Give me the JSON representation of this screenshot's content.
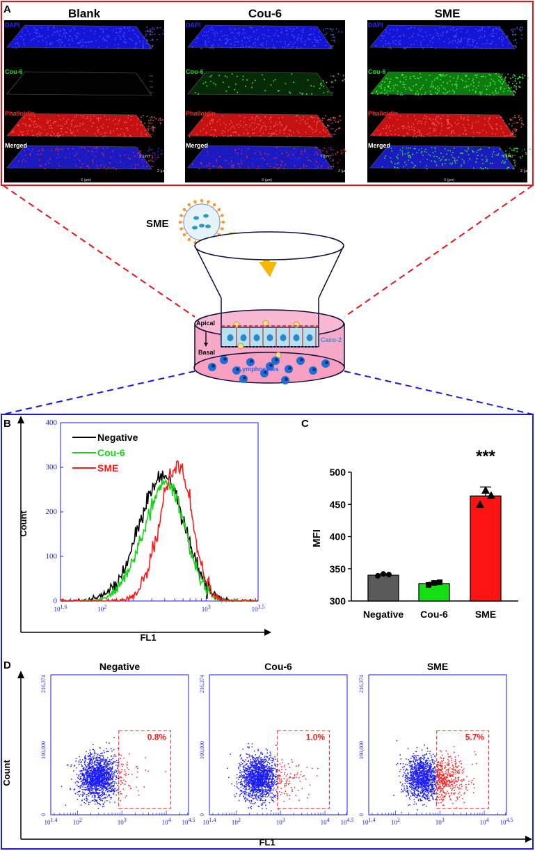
{
  "colors": {
    "red_frame": "#e8121b",
    "blue_frame": "#1a1ad9",
    "black": "#000000",
    "blue_tick": "#1a1aff",
    "green": "#14d414",
    "red": "#ff1a1a",
    "gray": "#5a5a5a"
  },
  "panel_a": {
    "letter": "A",
    "columns": [
      {
        "title": "Blank",
        "channels": [
          "DAPI",
          "Cou-6",
          "Phalloidin",
          "Merged"
        ],
        "green_level": 0.0
      },
      {
        "title": "Cou-6",
        "channels": [
          "DAPI",
          "Cou-6",
          "Phalloidin",
          "Merged"
        ],
        "green_level": 0.25
      },
      {
        "title": "SME",
        "channels": [
          "DAPI",
          "Cou-6",
          "Phalloidin",
          "Merged"
        ],
        "green_level": 1.0
      }
    ],
    "axis_y": "Y (μm)",
    "axis_z": "Z (μm)",
    "axis_x": "X (μm)"
  },
  "schematic": {
    "sme_label": "SME",
    "apical": "Apical",
    "basal": "Basal",
    "caco2": "Caco-2",
    "lymphocytes": "Lymphocytes"
  },
  "panel_b": {
    "letter": "B"
  },
  "panel_c": {
    "letter": "C"
  },
  "panel_d": {
    "letter": "D",
    "ylabel": "Count",
    "xlabel": "FL1"
  },
  "chart_data": [
    {
      "type": "line",
      "panel": "B",
      "xlabel": "FL1",
      "ylabel": "Count",
      "xscale": "log",
      "xlim": [
        1.6,
        3.5
      ],
      "ylim": [
        0,
        400
      ],
      "xtick_labels": [
        {
          "base": "10",
          "exp": "1.6",
          "at": 1.6
        },
        {
          "base": "10",
          "exp": "2",
          "at": 2
        },
        {
          "base": "10",
          "exp": "3",
          "at": 3
        },
        {
          "base": "10",
          "exp": "3.5",
          "at": 3.5
        }
      ],
      "yticks": [
        0,
        100,
        200,
        300,
        400
      ],
      "legend": "top-left",
      "series": [
        {
          "name": "Negative",
          "color": "#000000",
          "peak_x": 2.6,
          "peak_y": 280,
          "width": 0.24
        },
        {
          "name": "Cou-6",
          "color": "#14d414",
          "peak_x": 2.62,
          "peak_y": 265,
          "width": 0.22
        },
        {
          "name": "SME",
          "color": "#ff1a1a",
          "peak_x": 2.73,
          "peak_y": 305,
          "width": 0.17
        }
      ]
    },
    {
      "type": "bar",
      "panel": "C",
      "ylabel": "MFI",
      "ylim": [
        300,
        500
      ],
      "yticks": [
        300,
        350,
        400,
        450,
        500
      ],
      "categories": [
        "Negative",
        "Cou-6",
        "SME"
      ],
      "values": [
        340,
        327,
        463
      ],
      "errors": [
        2,
        2,
        14
      ],
      "points": [
        [
          339,
          342,
          341
        ],
        [
          325,
          328,
          329
        ],
        [
          450,
          472,
          464
        ]
      ],
      "colors": [
        "#5a5a5a",
        "#14e014",
        "#ff1414"
      ],
      "significance": [
        "",
        "",
        "***"
      ]
    },
    {
      "type": "scatter",
      "panel": "D",
      "xlabel": "FL1",
      "ylabel": "Count",
      "xscale": "log",
      "xlim": [
        1.4,
        4.5
      ],
      "ylim": [
        0,
        216374
      ],
      "xtick_labels": [
        {
          "base": "10",
          "exp": "1.4",
          "at": 1.4
        },
        {
          "base": "10",
          "exp": "2",
          "at": 2
        },
        {
          "base": "10",
          "exp": "3",
          "at": 3
        },
        {
          "base": "10",
          "exp": "4",
          "at": 4
        },
        {
          "base": "10",
          "exp": "4.5",
          "at": 4.5
        }
      ],
      "ytick_labels": [
        "0",
        "100,000",
        "216,374"
      ],
      "gate_x": 2.93,
      "plots": [
        {
          "title": "Negative",
          "percent": "0.8%",
          "center_x": 2.45,
          "spread": 0.22,
          "positive_fraction": 0.008
        },
        {
          "title": "Cou-6",
          "percent": "1.0%",
          "center_x": 2.5,
          "spread": 0.21,
          "positive_fraction": 0.01
        },
        {
          "title": "SME",
          "percent": "5.7%",
          "center_x": 2.6,
          "spread": 0.2,
          "positive_fraction": 0.057
        }
      ]
    }
  ]
}
